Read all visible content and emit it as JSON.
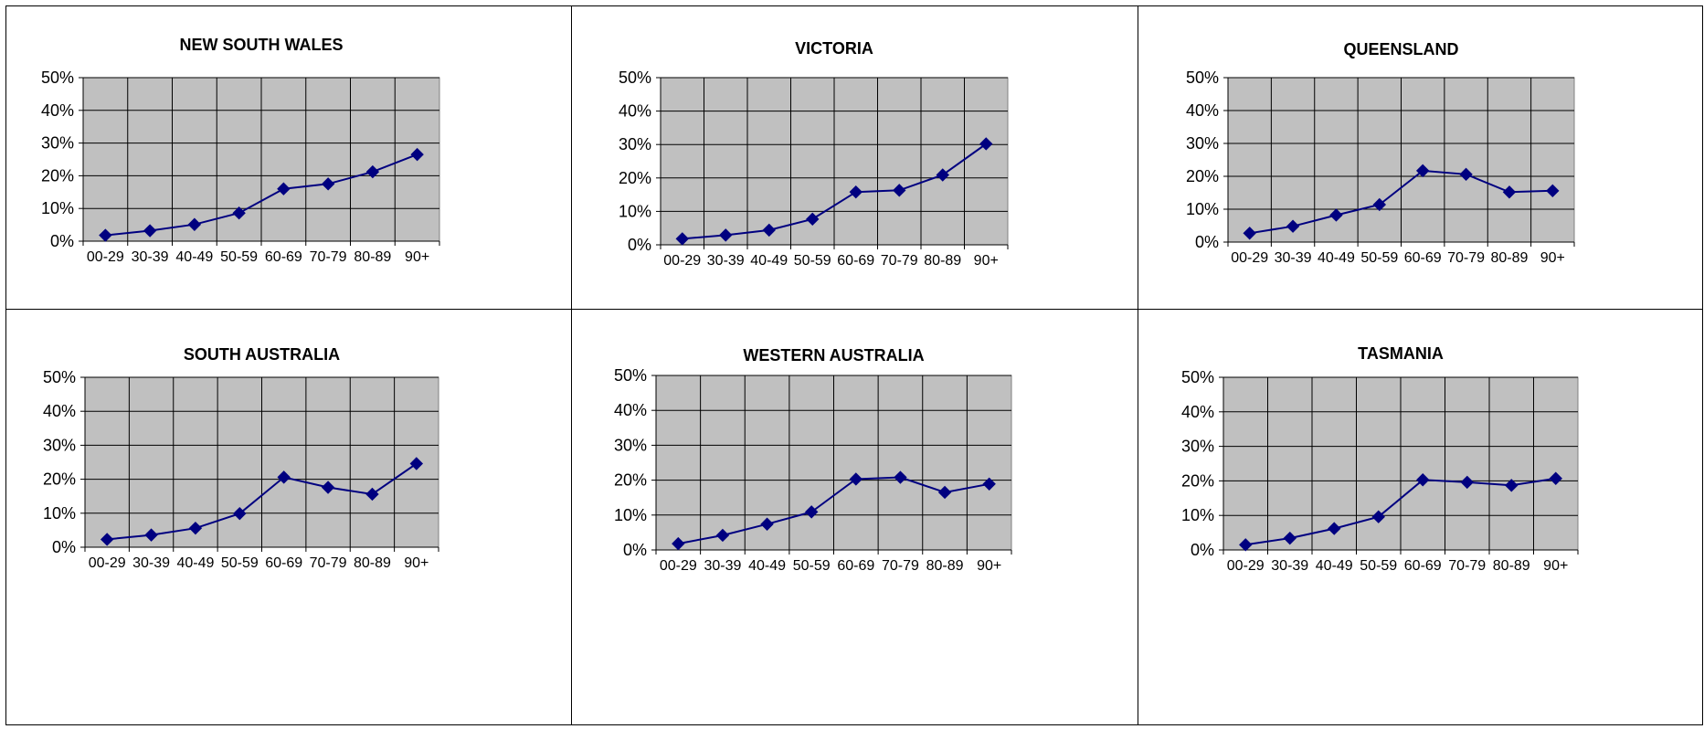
{
  "colors": {
    "plot_bg": "#c0c0c0",
    "line": "#000080",
    "grid": "#000000"
  },
  "chart_data": [
    {
      "type": "line",
      "title": "NEW SOUTH WALES",
      "categories": [
        "00-29",
        "30-39",
        "40-49",
        "50-59",
        "60-69",
        "70-79",
        "80-89",
        "90+"
      ],
      "values": [
        1.8,
        3.2,
        5.1,
        8.6,
        16.0,
        17.5,
        21.2,
        26.5
      ],
      "ylim": [
        0,
        50
      ],
      "yticks": [
        "0%",
        "10%",
        "20%",
        "30%",
        "40%",
        "50%"
      ],
      "grid": true,
      "marker": "diamond"
    },
    {
      "type": "line",
      "title": "VICTORIA",
      "categories": [
        "00-29",
        "30-39",
        "40-49",
        "50-59",
        "60-69",
        "70-79",
        "80-89",
        "90+"
      ],
      "values": [
        1.8,
        2.9,
        4.4,
        7.7,
        15.8,
        16.3,
        20.9,
        30.2
      ],
      "ylim": [
        0,
        50
      ],
      "yticks": [
        "0%",
        "10%",
        "20%",
        "30%",
        "40%",
        "50%"
      ],
      "grid": true,
      "marker": "diamond"
    },
    {
      "type": "line",
      "title": "QUEENSLAND",
      "categories": [
        "00-29",
        "30-39",
        "40-49",
        "50-59",
        "60-69",
        "70-79",
        "80-89",
        "90+"
      ],
      "values": [
        2.7,
        4.8,
        8.2,
        11.4,
        21.7,
        20.6,
        15.2,
        15.6
      ],
      "ylim": [
        0,
        50
      ],
      "yticks": [
        "0%",
        "10%",
        "20%",
        "30%",
        "40%",
        "50%"
      ],
      "grid": true,
      "marker": "diamond"
    },
    {
      "type": "line",
      "title": "SOUTH AUSTRALIA",
      "categories": [
        "00-29",
        "30-39",
        "40-49",
        "50-59",
        "60-69",
        "70-79",
        "80-89",
        "90+"
      ],
      "values": [
        2.3,
        3.6,
        5.6,
        9.9,
        20.6,
        17.6,
        15.6,
        24.6
      ],
      "ylim": [
        0,
        50
      ],
      "yticks": [
        "0%",
        "10%",
        "20%",
        "30%",
        "40%",
        "50%"
      ],
      "grid": true,
      "marker": "diamond"
    },
    {
      "type": "line",
      "title": "WESTERN AUSTRALIA",
      "categories": [
        "00-29",
        "30-39",
        "40-49",
        "50-59",
        "60-69",
        "70-79",
        "80-89",
        "90+"
      ],
      "values": [
        1.8,
        4.2,
        7.4,
        10.9,
        20.3,
        20.8,
        16.5,
        18.9
      ],
      "ylim": [
        0,
        50
      ],
      "yticks": [
        "0%",
        "10%",
        "20%",
        "30%",
        "40%",
        "50%"
      ],
      "grid": true,
      "marker": "diamond"
    },
    {
      "type": "line",
      "title": "TASMANIA",
      "categories": [
        "00-29",
        "30-39",
        "40-49",
        "50-59",
        "60-69",
        "70-79",
        "80-89",
        "90+"
      ],
      "values": [
        1.5,
        3.4,
        6.2,
        9.6,
        20.3,
        19.6,
        18.7,
        20.7
      ],
      "ylim": [
        0,
        50
      ],
      "yticks": [
        "0%",
        "10%",
        "20%",
        "30%",
        "40%",
        "50%"
      ],
      "grid": true,
      "marker": "diamond"
    }
  ]
}
